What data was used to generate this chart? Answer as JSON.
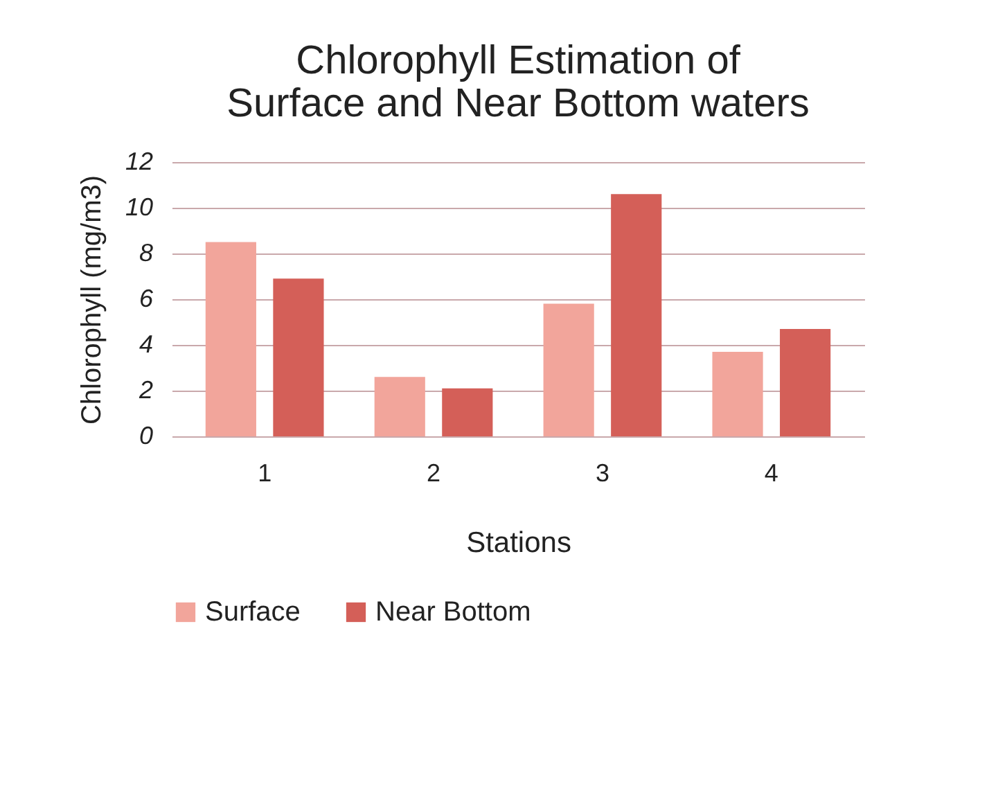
{
  "chart_data": {
    "type": "bar",
    "title": [
      "Chlorophyll Estimation of",
      "Surface and Near Bottom waters"
    ],
    "xlabel": "Stations",
    "ylabel": "Chlorophyll (mg/m3)",
    "categories": [
      "1",
      "2",
      "3",
      "4"
    ],
    "series": [
      {
        "name": "Surface",
        "color": "#f2a59b",
        "values": [
          8.5,
          2.6,
          5.8,
          3.7
        ]
      },
      {
        "name": "Near Bottom",
        "color": "#d45f58",
        "values": [
          6.9,
          2.1,
          10.6,
          4.7
        ]
      }
    ],
    "ylim": [
      0,
      12
    ],
    "yticks": [
      0,
      2,
      4,
      6,
      8,
      10,
      12
    ],
    "grid": "y",
    "legend": "bottom"
  }
}
